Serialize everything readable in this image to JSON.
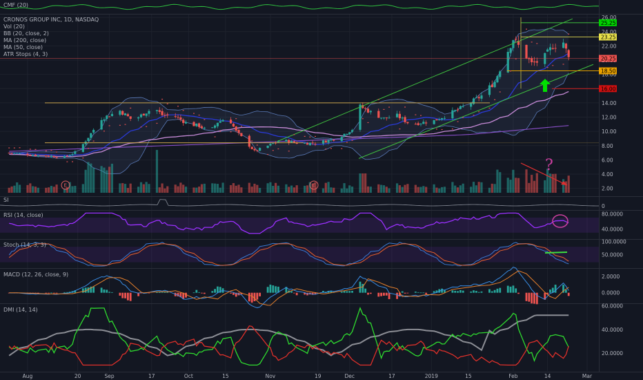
{
  "header": {
    "symbol_title": "CRONOS GROUP INC, 1D, NASDAQ",
    "indicators": [
      "Vol (20)",
      "BB (20, close, 2)",
      "MA (200, close)",
      "MA (50, close)",
      "ATR Stops (4, 3)"
    ]
  },
  "panes": {
    "cmf": "CMF (20)",
    "si": "SI",
    "rsi": "RSI (14, close)",
    "stoch": "Stoch (14, 3, 3)",
    "macd": "MACD (12, 26, close, 9)",
    "dmi": "DMI (14, 14)"
  },
  "annotations": {
    "earnings_marker": "E",
    "question_mark": "?"
  },
  "colors": {
    "background": "#131722",
    "up": "#26a69a",
    "down": "#ef5350",
    "trend_green": "#3fbf3f",
    "horizontal_orange": "#c8a24a",
    "ma50": "#c78bd8",
    "ma200": "#8a4fc9",
    "bb_mid": "#2a3ad8",
    "rsi": "#9b30ff",
    "arrow": "#00e000",
    "annotation_magenta": "#cc3fa0"
  },
  "chart_data": [
    {
      "type": "candlestick",
      "title": "CRONOS GROUP INC, 1D, NASDAQ",
      "x_ticks": [
        "Aug",
        "20",
        "Sep",
        "17",
        "Oct",
        "15",
        "Nov",
        "19",
        "Dec",
        "17",
        "2019",
        "15",
        "Feb",
        "14",
        "Mar"
      ],
      "y_ticks": [
        "26.00",
        "24.00",
        "22.00",
        "20.00",
        "18.00",
        "16.00",
        "14.00",
        "12.00",
        "10.00",
        "8.00",
        "6.00",
        "4.00",
        "2.00"
      ],
      "ylim": [
        1,
        26.5
      ],
      "price_tags": [
        "25.25",
        "23.25",
        "20.25",
        "18.50",
        "16.00"
      ],
      "close_trend": [
        [
          "Jul 25",
          7.0
        ],
        [
          "Aug 6",
          6.6
        ],
        [
          "Aug 15",
          6.4
        ],
        [
          "Aug 20",
          7.2
        ],
        [
          "Aug 24",
          9.2
        ],
        [
          "Aug 29",
          11.8
        ],
        [
          "Sep 5",
          12.9
        ],
        [
          "Sep 10",
          11.5
        ],
        [
          "Sep 14",
          12.5
        ],
        [
          "Sep 18",
          13.3
        ],
        [
          "Sep 21",
          12.3
        ],
        [
          "Sep 26",
          12.1
        ],
        [
          "Oct 1",
          11.0
        ],
        [
          "Oct 5",
          10.8
        ],
        [
          "Oct 9",
          9.9
        ],
        [
          "Oct 12",
          11.3
        ],
        [
          "Oct 16",
          12.0
        ],
        [
          "Oct 19",
          10.0
        ],
        [
          "Oct 23",
          8.4
        ],
        [
          "Oct 26",
          7.2
        ],
        [
          "Oct 30",
          7.8
        ],
        [
          "Nov 5",
          8.8
        ],
        [
          "Nov 12",
          8.3
        ],
        [
          "Nov 19",
          8.4
        ],
        [
          "Nov 26",
          9.0
        ],
        [
          "Dec 3",
          10.5
        ],
        [
          "Dec 5",
          13.5
        ],
        [
          "Dec 10",
          12.5
        ],
        [
          "Dec 14",
          11.8
        ],
        [
          "Dec 19",
          12.2
        ],
        [
          "Dec 24",
          11.0
        ],
        [
          "Jan 2",
          11.5
        ],
        [
          "Jan 8",
          12.5
        ],
        [
          "Jan 14",
          13.6
        ],
        [
          "Jan 20",
          15.0
        ],
        [
          "Jan 25",
          17.0
        ],
        [
          "Jan 29",
          20.5
        ],
        [
          "Feb 1",
          23.0
        ],
        [
          "Feb 4",
          21.5
        ],
        [
          "Feb 8",
          19.5
        ],
        [
          "Feb 12",
          20.0
        ],
        [
          "Feb 16",
          22.0
        ],
        [
          "Feb 20",
          22.5
        ],
        [
          "Feb 22",
          20.25
        ]
      ]
    },
    {
      "type": "line",
      "title": "RSI (14, close)",
      "y_ticks": [
        "80.0000",
        "40.0000"
      ],
      "ylim": [
        15,
        90
      ]
    },
    {
      "type": "line",
      "title": "Stoch (14, 3, 3)",
      "y_ticks": [
        "100.0000",
        "50.0000"
      ],
      "ylim": [
        0,
        110
      ]
    },
    {
      "type": "bar",
      "title": "MACD (12, 26, close, 9)",
      "y_ticks": [
        "2.0000",
        "0.0000"
      ],
      "ylim": [
        -1.2,
        3.0
      ]
    },
    {
      "type": "line",
      "title": "DMI (14, 14)",
      "y_ticks": [
        "60.0000",
        "40.0000",
        "20.0000"
      ],
      "ylim": [
        5,
        62
      ]
    }
  ]
}
